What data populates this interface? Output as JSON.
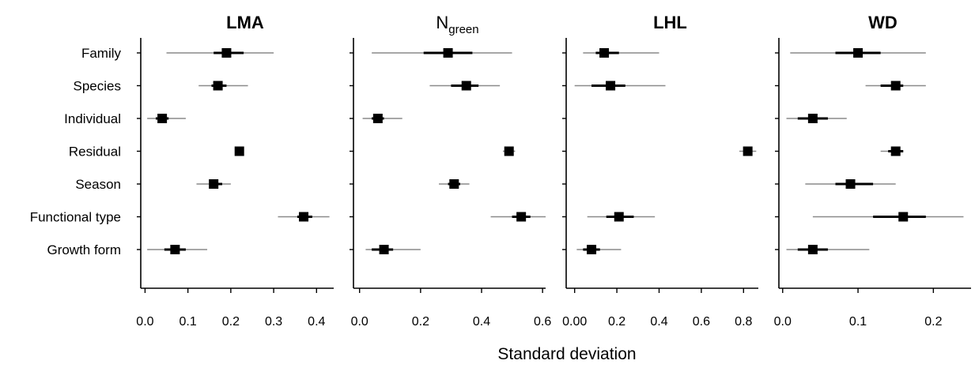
{
  "chart_data": {
    "type": "forest",
    "xlabel": "Standard deviation",
    "categories": [
      "Family",
      "Species",
      "Individual",
      "Residual",
      "Season",
      "Functional type",
      "Growth form"
    ],
    "panels": [
      {
        "title": "LMA",
        "title_sub": "",
        "title_bold": true,
        "xlim": [
          -0.01,
          0.44
        ],
        "ticks": [
          0.0,
          0.1,
          0.2,
          0.3,
          0.4
        ],
        "tick_labels": [
          "0.0",
          "0.1",
          "0.2",
          "0.3",
          "0.4"
        ],
        "estimates": [
          0.19,
          0.17,
          0.04,
          0.22,
          0.16,
          0.37,
          0.07
        ],
        "inner": [
          [
            0.16,
            0.23
          ],
          [
            0.155,
            0.19
          ],
          [
            0.025,
            0.055
          ],
          [
            0.21,
            0.23
          ],
          [
            0.15,
            0.18
          ],
          [
            0.355,
            0.39
          ],
          [
            0.045,
            0.095
          ]
        ],
        "outer": [
          [
            0.05,
            0.3
          ],
          [
            0.125,
            0.24
          ],
          [
            0.005,
            0.095
          ],
          [
            0.21,
            0.23
          ],
          [
            0.12,
            0.2
          ],
          [
            0.31,
            0.43
          ],
          [
            0.005,
            0.145
          ]
        ]
      },
      {
        "title": "N",
        "title_sub": "green",
        "title_bold": false,
        "xlim": [
          -0.02,
          0.61
        ],
        "ticks": [
          0.0,
          0.2,
          0.4,
          0.6
        ],
        "tick_labels": [
          "0.0",
          "0.2",
          "0.4",
          "0.6"
        ],
        "estimates": [
          0.29,
          0.35,
          0.06,
          0.49,
          0.31,
          0.53,
          0.08
        ],
        "inner": [
          [
            0.21,
            0.37
          ],
          [
            0.3,
            0.39
          ],
          [
            0.04,
            0.08
          ],
          [
            0.48,
            0.5
          ],
          [
            0.29,
            0.33
          ],
          [
            0.5,
            0.56
          ],
          [
            0.04,
            0.11
          ]
        ],
        "outer": [
          [
            0.04,
            0.5
          ],
          [
            0.23,
            0.46
          ],
          [
            0.01,
            0.14
          ],
          [
            0.47,
            0.51
          ],
          [
            0.26,
            0.36
          ],
          [
            0.43,
            0.61
          ],
          [
            0.02,
            0.2
          ]
        ]
      },
      {
        "title": "LHL",
        "title_sub": "",
        "title_bold": true,
        "xlim": [
          -0.04,
          0.87
        ],
        "ticks": [
          0.0,
          0.2,
          0.4,
          0.6,
          0.8
        ],
        "tick_labels": [
          "0.00",
          "0.2",
          "0.4",
          "0.6",
          "0.8"
        ],
        "estimates": [
          0.14,
          0.17,
          null,
          0.82,
          null,
          0.21,
          0.08
        ],
        "inner": [
          [
            0.1,
            0.21
          ],
          [
            0.08,
            0.24
          ],
          null,
          [
            0.8,
            0.84
          ],
          null,
          [
            0.15,
            0.28
          ],
          [
            0.04,
            0.12
          ]
        ],
        "outer": [
          [
            0.04,
            0.4
          ],
          [
            0.0,
            0.43
          ],
          null,
          [
            0.78,
            0.86
          ],
          null,
          [
            0.06,
            0.38
          ],
          [
            0.01,
            0.22
          ]
        ]
      },
      {
        "title": "WD",
        "title_sub": "",
        "title_bold": true,
        "xlim": [
          -0.005,
          0.25
        ],
        "ticks": [
          0.0,
          0.1,
          0.2
        ],
        "tick_labels": [
          "0.0",
          "0.1",
          "0.2"
        ],
        "estimates": [
          0.1,
          0.15,
          0.04,
          0.15,
          0.09,
          0.16,
          0.04
        ],
        "inner": [
          [
            0.07,
            0.13
          ],
          [
            0.13,
            0.16
          ],
          [
            0.02,
            0.06
          ],
          [
            0.14,
            0.16
          ],
          [
            0.07,
            0.12
          ],
          [
            0.12,
            0.19
          ],
          [
            0.02,
            0.06
          ]
        ],
        "outer": [
          [
            0.01,
            0.19
          ],
          [
            0.11,
            0.19
          ],
          [
            0.005,
            0.085
          ],
          [
            0.13,
            0.16
          ],
          [
            0.03,
            0.15
          ],
          [
            0.04,
            0.24
          ],
          [
            0.005,
            0.115
          ]
        ]
      }
    ]
  }
}
